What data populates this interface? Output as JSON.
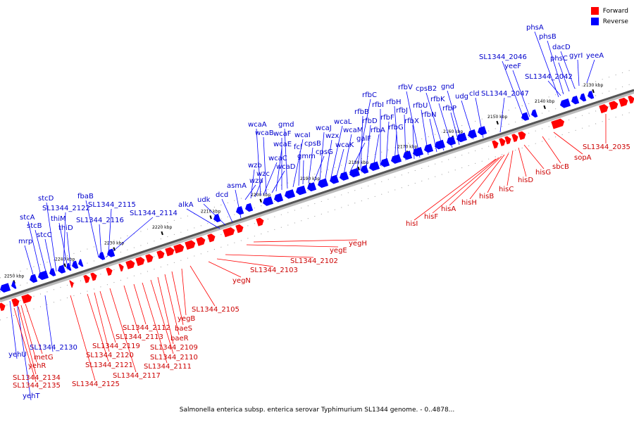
{
  "legend": {
    "forward_label": "Forward",
    "reverse_label": "Reverse",
    "forward_color": "#ff0000",
    "reverse_color": "#0000ff"
  },
  "caption": "Salmonella enterica subsp. enterica serovar Typhimurium SL1344 genome. - 0..4878...",
  "genome_axis": {
    "start_kbp": 2128,
    "end_kbp": 2254,
    "tick_labels": [
      "2130 kbp",
      "2140 kbp",
      "2150 kbp",
      "2160 kbp",
      "2170 kbp",
      "2180 kbp",
      "2190 kbp",
      "2200 kbp",
      "2210 kbp",
      "2220 kbp",
      "2230 kbp",
      "2240 kbp",
      "2250 kbp"
    ]
  },
  "reverse_genes": [
    "yeeA",
    "gyrI",
    "dacD",
    "phsC",
    "phsB",
    "phsA",
    "SL1344_2042",
    "yeeF",
    "SL1344_2046",
    "SL1344_2047",
    "cld",
    "udg",
    "gnd",
    "rfbP",
    "rfbK",
    "cpsB2",
    "rfbN",
    "rfbU",
    "rfbV",
    "rfbX",
    "rfbJ",
    "rfbH",
    "rfbG",
    "rfbF",
    "rfbI",
    "rfbA",
    "rfbD",
    "rfbB",
    "rfbC",
    "galF",
    "wcaM",
    "wcaK",
    "wcaL",
    "wzx",
    "wcaJ",
    "cpsG",
    "cpsB",
    "gmm",
    "fcl",
    "wcaI",
    "gmd",
    "wcaF",
    "wcaE",
    "wcaD",
    "wcaB",
    "wcaA",
    "wcaC",
    "wzc",
    "wzb",
    "wza",
    "asmA",
    "dcd",
    "udk",
    "alkA",
    "SL1344_2114",
    "SL1344_2115",
    "SL1344_2116",
    "fbaB",
    "thiD",
    "thiM",
    "SL1344_2122",
    "stcD",
    "stcC",
    "stcB",
    "stcA",
    "mrp",
    "SL1344_2130",
    "yehU",
    "yehT"
  ],
  "forward_genes": [
    "SL1344_2035",
    "sopA",
    "sbcB",
    "hisG",
    "hisD",
    "hisC",
    "hisB",
    "hisH",
    "hisA",
    "hisF",
    "hisI",
    "yegH",
    "yegE",
    "SL1344_2102",
    "SL1344_2103",
    "yegN",
    "SL1344_2105",
    "yegB",
    "baeS",
    "baeR",
    "SL1344_2109",
    "SL1344_2110",
    "SL1344_2111",
    "SL1344_2112",
    "SL1344_2113",
    "SL1344_2117",
    "SL1344_2119",
    "SL1344_2120",
    "SL1344_2121",
    "SL1344_2125",
    "metG",
    "yehR",
    "SL1344_2134",
    "SL1344_2135"
  ]
}
